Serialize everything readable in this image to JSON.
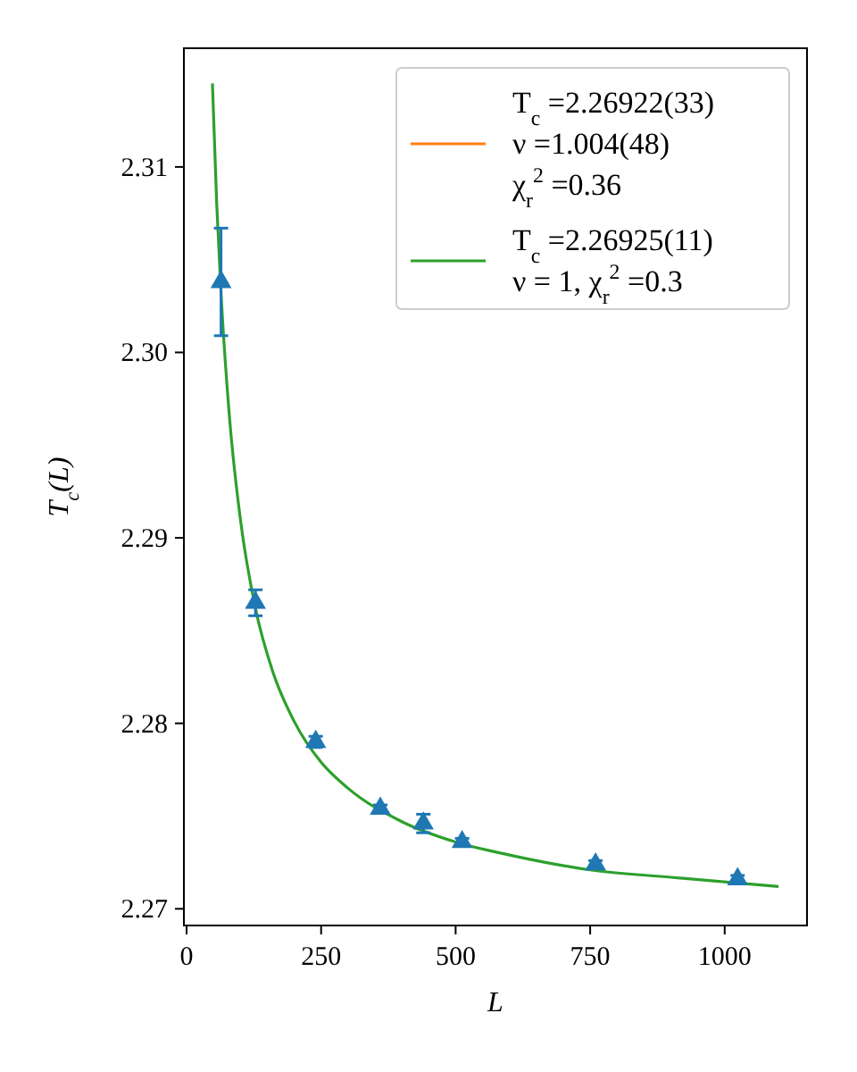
{
  "chart_data": {
    "type": "scatter",
    "xlabel": "L",
    "ylabel": "T$_{c}$(L)",
    "xlim": [
      -5,
      1153
    ],
    "ylim": [
      2.2691,
      2.3164
    ],
    "xticks": [
      0,
      250,
      500,
      750,
      1000
    ],
    "yticks": [
      2.27,
      2.28,
      2.29,
      {
        "value": 2.3,
        "label": "2.30"
      },
      2.31
    ],
    "legend": "top right",
    "marker": "triangle",
    "grid": false,
    "x": [
      64,
      128,
      240,
      360,
      440,
      512,
      760,
      1024
    ],
    "series": [
      {
        "type": "line",
        "name": "T$_{c}$ =2.26922(33)\nν =1.004(48)\nχ$_{r}$$^{2}$ =0.36",
        "color": "#ff7f0e",
        "marker": "none",
        "values": [
          null,
          null,
          null,
          null,
          null,
          null,
          null,
          null
        ]
      },
      {
        "type": "line",
        "name": "T$_{c}$ =2.26925(11)\nν = 1, χ$_{r}$$^{2}$ =0.3",
        "color": "#2ca02c",
        "marker": "none",
        "x": [
          48,
          56,
          64,
          80,
          100,
          128,
          160,
          200,
          250,
          300,
          400,
          500,
          600,
          750,
          900,
          1100
        ],
        "values": [
          2.3145,
          2.308,
          2.3032,
          2.2964,
          2.291,
          2.2862,
          2.2828,
          2.2801,
          2.2779,
          2.2765,
          2.2747,
          2.2736,
          2.2729,
          2.2721,
          2.2717,
          2.2712
        ]
      },
      {
        "color": "#1f77b4",
        "values": [
          2.3038,
          2.2865,
          2.279,
          2.2754,
          2.2746,
          2.2736,
          2.2724,
          2.2716
        ],
        "errors": [
          0.0029,
          0.0007,
          0.0003,
          0.0002,
          0.0005,
          0.0002,
          0.0002,
          0.0002
        ]
      }
    ]
  }
}
